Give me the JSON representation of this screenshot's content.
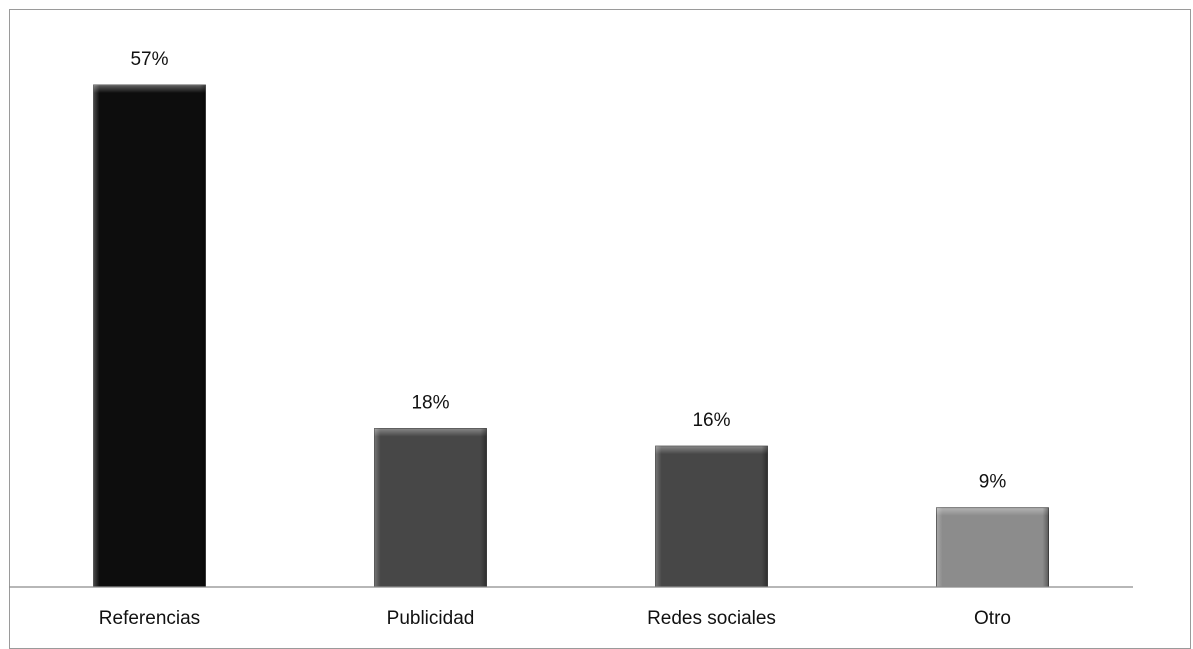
{
  "chart_data": {
    "type": "bar",
    "categories": [
      "Referencias",
      "Publicidad",
      "Redes sociales",
      "Otro"
    ],
    "values": [
      57,
      18,
      16,
      9
    ],
    "value_labels": [
      "57%",
      "18%",
      "16%",
      "9%"
    ],
    "colors": [
      "#0d0d0d",
      "#474747",
      "#474747",
      "#8c8c8c"
    ],
    "title": "",
    "xlabel": "",
    "ylabel": "",
    "ylim": [
      0,
      57
    ],
    "grid": false,
    "legend": "none"
  }
}
